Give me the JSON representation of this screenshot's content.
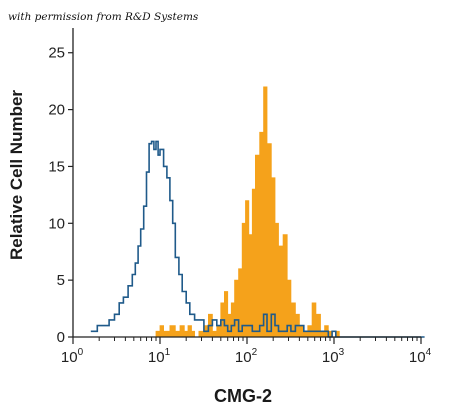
{
  "credit": "with permission from R&D Systems",
  "colors": {
    "control": "#1f5a8a",
    "stained": "#f5a21b",
    "axis": "#222222"
  },
  "chart_data": {
    "type": "histogram",
    "xlabel": "CMG-2",
    "ylabel": "Relative Cell Number",
    "xscale": "log",
    "xlim": [
      1,
      10000
    ],
    "ylim": [
      0,
      27
    ],
    "yticks": [
      0,
      5,
      10,
      15,
      20,
      25
    ],
    "xticks": [
      {
        "base": "10",
        "exp": "0",
        "value": 1
      },
      {
        "base": "10",
        "exp": "1",
        "value": 10
      },
      {
        "base": "10",
        "exp": "2",
        "value": 100
      },
      {
        "base": "10",
        "exp": "3",
        "value": 1000
      },
      {
        "base": "10",
        "exp": "4",
        "value": 10000
      }
    ],
    "series": [
      {
        "style": "outline",
        "x": [
          1.6,
          1.9,
          2.2,
          2.6,
          3.0,
          3.4,
          3.8,
          4.3,
          4.8,
          5.2,
          5.6,
          6.0,
          6.5,
          7.0,
          7.5,
          8.0,
          8.5,
          9.0,
          9.5,
          10.0,
          11.0,
          12.0,
          13.0,
          14.0,
          15.0,
          16.5,
          18.0,
          20.0,
          22.0,
          25.0,
          28.0,
          32.0,
          36.0,
          40.0,
          45.0,
          50.0,
          55.0,
          60.0,
          66.0,
          72.0,
          80.0,
          88.0,
          96.0,
          105.0,
          115.0,
          125.0,
          140.0,
          155.0,
          170.0,
          190.0,
          210.0,
          230.0,
          260.0,
          290.0,
          320.0,
          360.0,
          400.0,
          450.0,
          500.0,
          560.0,
          620.0,
          700.0,
          780.0,
          860.0,
          950.0,
          1050.0,
          1150.0,
          1300.0,
          1450.0,
          1600.0,
          1800.0,
          2000.0,
          3000.0,
          5000.0,
          10000.0
        ],
        "y": [
          0.5,
          1,
          1,
          1.5,
          2,
          3,
          3.5,
          4.5,
          5.5,
          6.5,
          8,
          9.5,
          11.5,
          14.5,
          17,
          17.2,
          16.5,
          17.2,
          16,
          16.5,
          15,
          14,
          12,
          10,
          7,
          5.5,
          4,
          3,
          2,
          1.5,
          1.5,
          0.5,
          1,
          1.5,
          1,
          1.5,
          1,
          0.5,
          1,
          1.5,
          0.5,
          1,
          1,
          1,
          0.5,
          0.5,
          1,
          2,
          0.5,
          2,
          1,
          0.5,
          0.5,
          1,
          0.5,
          1,
          1,
          0.5,
          0.5,
          0.5,
          0.5,
          0.5,
          0.5,
          0,
          0.5,
          0,
          0,
          0,
          0,
          0,
          0,
          0,
          0,
          0,
          0
        ]
      },
      {
        "style": "filled",
        "x": [
          8.0,
          9.0,
          10.0,
          11.0,
          13.0,
          15.0,
          17.0,
          19.0,
          21.0,
          23.0,
          25.0,
          28.0,
          32.0,
          36.0,
          40.0,
          45.0,
          50.0,
          55.0,
          60.0,
          66.0,
          72.0,
          80.0,
          88.0,
          96.0,
          105.0,
          115.0,
          125.0,
          140.0,
          155.0,
          170.0,
          190.0,
          210.0,
          230.0,
          260.0,
          290.0,
          320.0,
          360.0,
          400.0,
          450.0,
          500.0,
          560.0,
          620.0,
          700.0,
          780.0,
          860.0,
          950.0,
          1050.0,
          1150.0,
          1300.0
        ],
        "y": [
          0,
          0.5,
          1,
          0.5,
          1,
          0.5,
          1,
          0.5,
          1,
          0.5,
          0,
          0.5,
          1,
          2,
          0.5,
          1,
          3,
          4,
          2,
          3,
          5,
          6,
          10,
          12,
          9,
          13,
          16,
          18,
          22,
          17,
          14,
          10,
          8,
          9,
          5,
          3,
          2,
          1,
          0.5,
          1,
          3,
          2,
          0.5,
          1,
          0.5,
          0,
          0.5,
          0,
          0
        ]
      }
    ]
  }
}
